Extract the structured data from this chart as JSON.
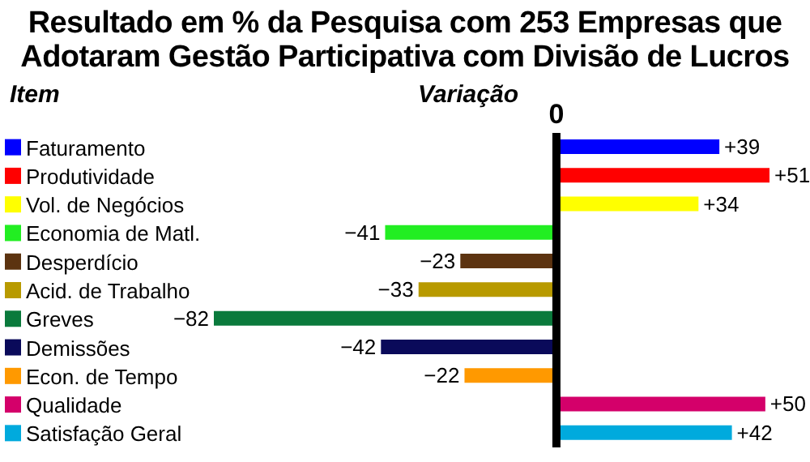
{
  "chart_data": {
    "type": "bar",
    "orientation": "horizontal",
    "title": "Resultado em % da Pesquisa com 253 Empresas que Adotaram Gestão Participativa com Divisão de Lucros",
    "ylabel": "Item",
    "xlabel": "Variação",
    "categories": [
      "Faturamento",
      "Produtividade",
      "Vol. de Negócios",
      "Economia de Matl.",
      "Desperdício",
      "Acid. de Trabalho",
      "Greves",
      "Demissões",
      "Econ. de Tempo",
      "Qualidade",
      "Satisfação Geral"
    ],
    "values": [
      39,
      51,
      34,
      -41,
      -23,
      -33,
      -82,
      -42,
      -22,
      50,
      42
    ],
    "value_labels": [
      "+39",
      "+51",
      "+34",
      "−41",
      "−23",
      "−33",
      "−82",
      "−42",
      "−22",
      "+50",
      "+42"
    ],
    "colors": [
      "#0000ff",
      "#ff0000",
      "#ffff00",
      "#22ee22",
      "#5c3310",
      "#b89a00",
      "#0a7a3c",
      "#0a0a5a",
      "#ff9900",
      "#d4006a",
      "#00aadd"
    ],
    "ref_lines": [
      {
        "axis": "x",
        "value": 0,
        "label": "0",
        "color": "#000000"
      }
    ]
  }
}
